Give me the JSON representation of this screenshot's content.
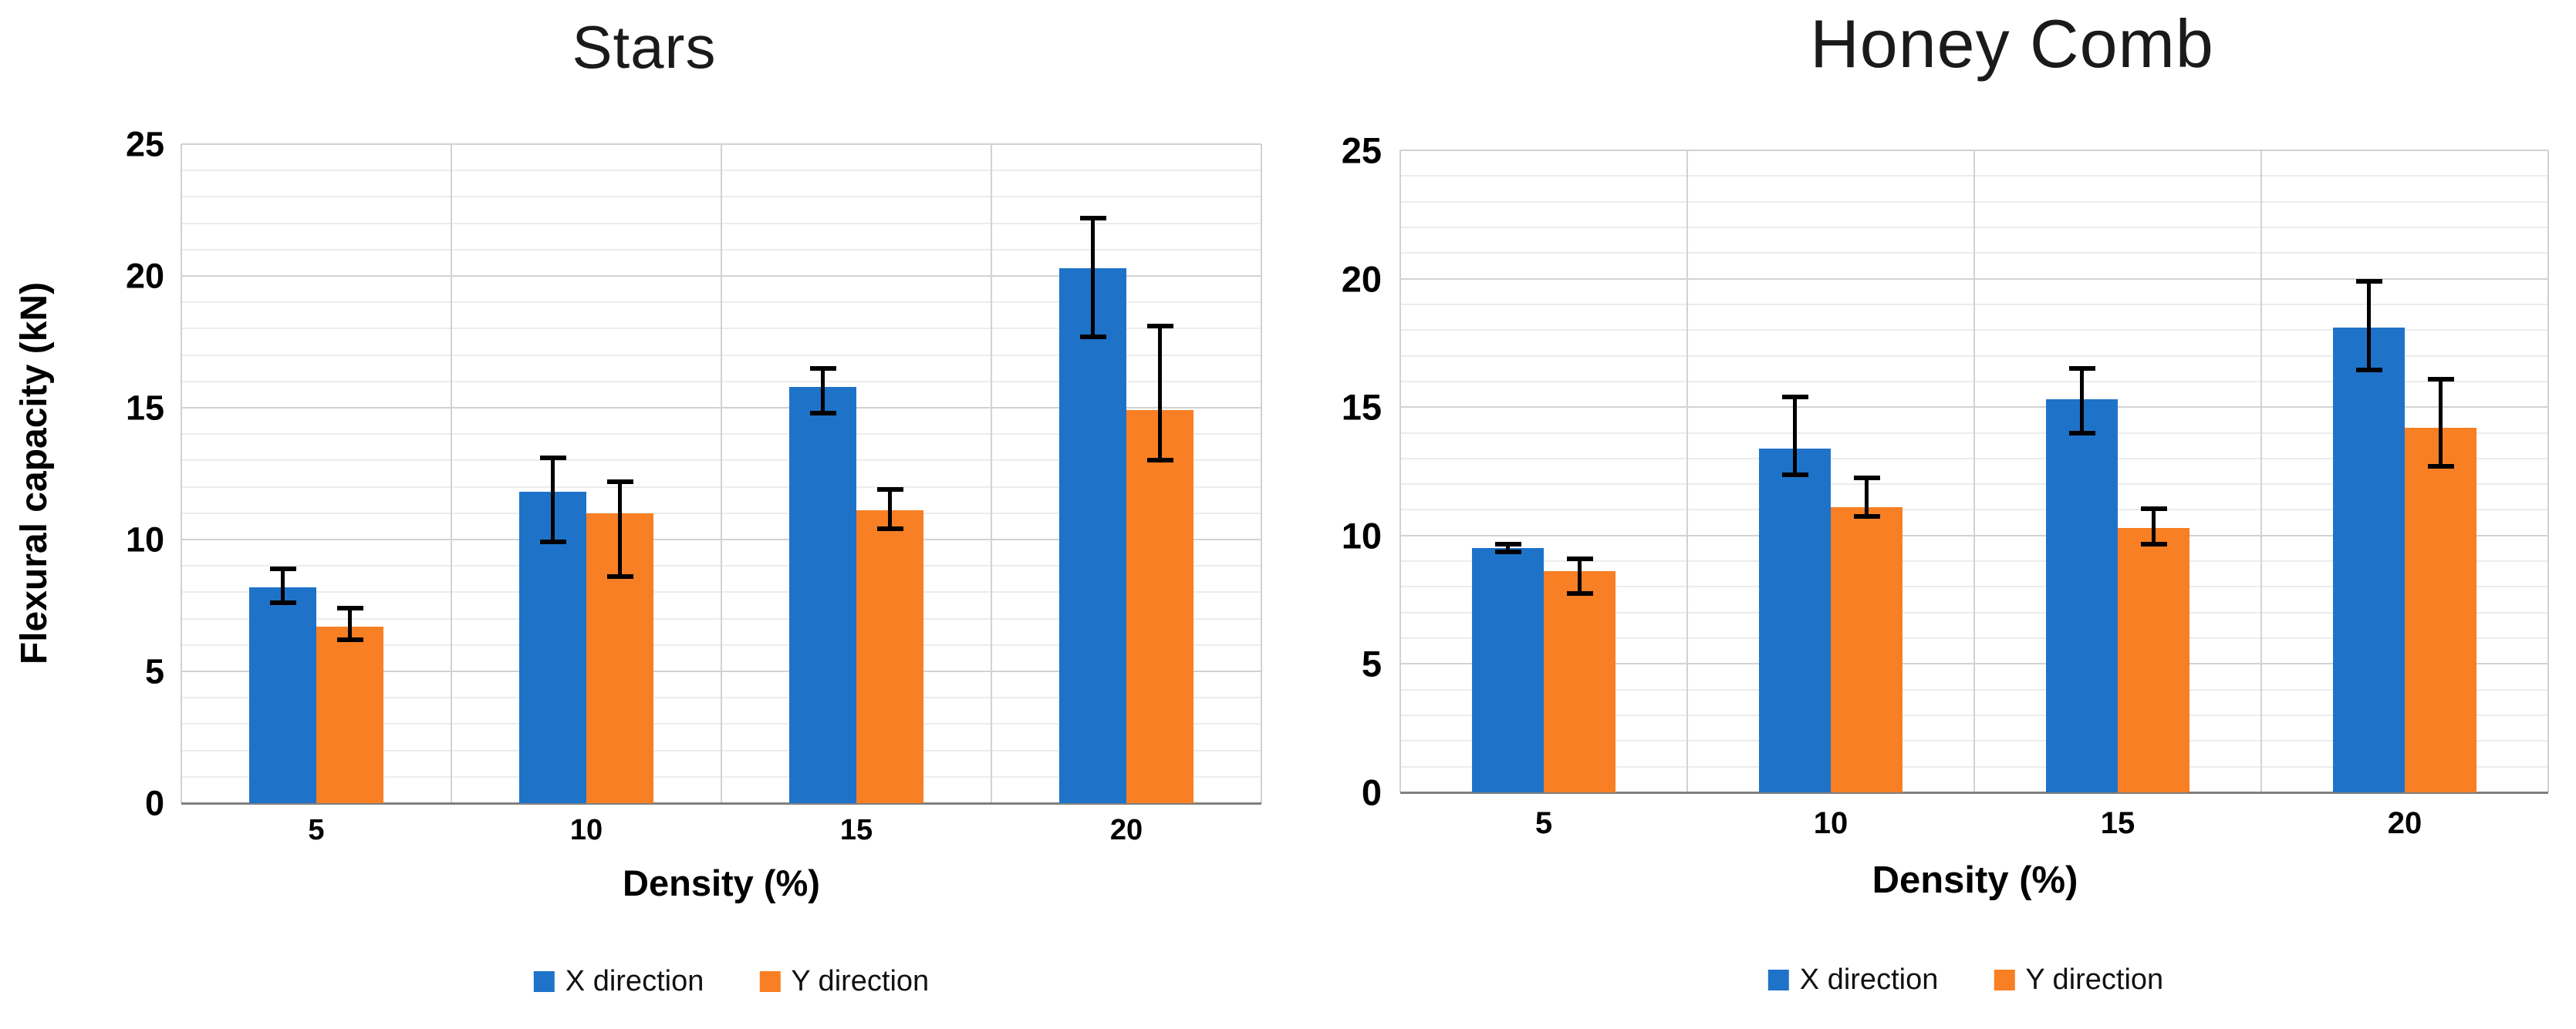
{
  "figure": {
    "background": "#ffffff",
    "text_color": "#000000",
    "grid_minor_color": "#ececec",
    "grid_major_color": "#d2d2d2",
    "axis_line_color": "#7f7f7f"
  },
  "legend": {
    "items": [
      {
        "label": "X direction",
        "color": "#1e73c9"
      },
      {
        "label": "Y direction",
        "color": "#f87f23"
      }
    ]
  },
  "chart_data": [
    {
      "type": "bar",
      "title": "Stars",
      "xlabel": "Density (%)",
      "ylabel": "Flexural capacity (kN)",
      "ylim": [
        0,
        25
      ],
      "ytick_step": 5,
      "minor_grid_step": 1,
      "grid": "on",
      "legend_position": "bottom",
      "yticks": [
        "0",
        "5",
        "10",
        "15",
        "20",
        "25"
      ],
      "categories": [
        "5",
        "10",
        "15",
        "20"
      ],
      "series": [
        {
          "name": "X direction",
          "color": "#1e73c9",
          "points": [
            {
              "v": 8.2,
              "lo": 7.6,
              "hi": 8.9
            },
            {
              "v": 11.8,
              "lo": 9.9,
              "hi": 13.1
            },
            {
              "v": 15.8,
              "lo": 14.8,
              "hi": 16.5
            },
            {
              "v": 20.3,
              "lo": 17.7,
              "hi": 22.2
            }
          ]
        },
        {
          "name": "Y direction",
          "color": "#f87f23",
          "points": [
            {
              "v": 6.7,
              "lo": 6.2,
              "hi": 7.4
            },
            {
              "v": 11.0,
              "lo": 8.6,
              "hi": 12.2
            },
            {
              "v": 11.1,
              "lo": 10.4,
              "hi": 11.9
            },
            {
              "v": 14.9,
              "lo": 13.0,
              "hi": 18.1
            }
          ]
        }
      ]
    },
    {
      "type": "bar",
      "title": "Honey Comb",
      "xlabel": "Density (%)",
      "ylabel": "",
      "ylim": [
        0,
        25
      ],
      "ytick_step": 5,
      "minor_grid_step": 1,
      "grid": "on",
      "legend_position": "bottom",
      "yticks": [
        "0",
        "5",
        "10",
        "15",
        "20",
        "25"
      ],
      "categories": [
        "5",
        "10",
        "15",
        "20"
      ],
      "series": [
        {
          "name": "X direction",
          "color": "#1e73c9",
          "points": [
            {
              "v": 9.5,
              "lo": 9.35,
              "hi": 9.65
            },
            {
              "v": 13.4,
              "lo": 12.35,
              "hi": 15.4
            },
            {
              "v": 15.3,
              "lo": 14.0,
              "hi": 16.5
            },
            {
              "v": 18.1,
              "lo": 16.45,
              "hi": 19.9
            }
          ]
        },
        {
          "name": "Y direction",
          "color": "#f87f23",
          "points": [
            {
              "v": 8.6,
              "lo": 7.75,
              "hi": 9.1
            },
            {
              "v": 11.1,
              "lo": 10.75,
              "hi": 12.25
            },
            {
              "v": 10.3,
              "lo": 9.65,
              "hi": 11.05
            },
            {
              "v": 14.2,
              "lo": 12.7,
              "hi": 16.1
            }
          ]
        }
      ]
    }
  ]
}
